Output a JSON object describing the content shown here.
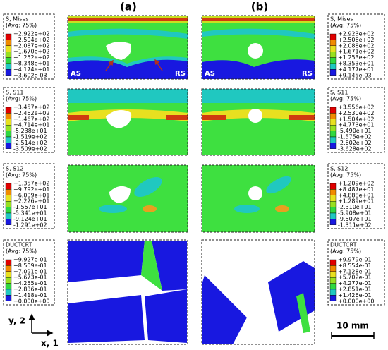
{
  "columns": [
    "(a)",
    "(b)"
  ],
  "legends": [
    {
      "title": "S, Mises",
      "subtitle": "(Avg: 75%)",
      "values": [
        "+2.922e+02",
        "+2.504e+02",
        "+2.087e+02",
        "+1.670e+02",
        "+1.252e+02",
        "+8.348e+01",
        "+4.174e+01",
        "+3.602e-03"
      ]
    },
    {
      "title": "S, S11",
      "subtitle": "(Avg: 75%)",
      "values": [
        "+3.457e+02",
        "+2.462e+02",
        "+1.467e+02",
        "+4.714e+01",
        "-5.238e+01",
        "-1.519e+02",
        "-2.514e+02",
        "-3.509e+02"
      ]
    },
    {
      "title": "S, S12",
      "subtitle": "(Avg: 75%)",
      "values": [
        "+1.357e+02",
        "+9.792e+01",
        "+6.009e+01",
        "+2.226e+01",
        "-1.557e+01",
        "-5.341e+01",
        "-9.124e+01",
        "-1.291e+02"
      ]
    },
    {
      "title": "DUCTCRT",
      "subtitle": "(Avg: 75%)",
      "values": [
        "+9.927e-01",
        "+8.509e-01",
        "+7.091e-01",
        "+5.673e-01",
        "+4.255e-01",
        "+2.836e-01",
        "+1.418e-01",
        "+0.000e+00"
      ]
    },
    {
      "title": "S, Mises",
      "subtitle": "(Avg: 75%)",
      "values": [
        "+2.923e+02",
        "+2.506e+02",
        "+2.088e+02",
        "+1.671e+02",
        "+1.253e+02",
        "+8.353e+01",
        "+4.177e+01",
        "+9.145e-03"
      ]
    },
    {
      "title": "S, S11",
      "subtitle": "(Avg: 75%)",
      "values": [
        "+3.556e+02",
        "+2.530e+02",
        "+1.504e+02",
        "+4.773e+01",
        "-5.490e+01",
        "-1.575e+02",
        "-2.602e+02",
        "-3.628e+02"
      ]
    },
    {
      "title": "S, S12",
      "subtitle": "(Avg: 75%)",
      "values": [
        "+1.209e+02",
        "+8.487e+01",
        "+4.888e+01",
        "+1.289e+01",
        "-2.310e+01",
        "-5.908e+01",
        "-9.507e+01",
        "-1.311e+02"
      ]
    },
    {
      "title": "DUCTCRT",
      "subtitle": "(Avg: 75%)",
      "values": [
        "+9.979e-01",
        "+8.554e-01",
        "+7.128e-01",
        "+5.702e-01",
        "+4.277e-01",
        "+2.851e-01",
        "+1.426e-01",
        "+0.000e+00"
      ]
    }
  ],
  "panel_labels": {
    "advancing": "AS",
    "retreating": "RS"
  },
  "axes": {
    "y": "y, 2",
    "x": "x, 1"
  },
  "scale_bar": "10 mm"
}
